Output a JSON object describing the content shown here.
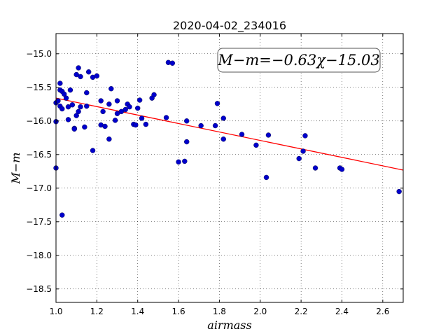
{
  "chart_data": {
    "type": "scatter",
    "title": "2020-04-02_234016",
    "xlabel": "airmass",
    "ylabel": "M−m",
    "xlim": [
      1.0,
      2.7
    ],
    "ylim": [
      -18.7,
      -14.7
    ],
    "y_inverted": true,
    "grid": true,
    "x_ticks": [
      1.0,
      1.2,
      1.4,
      1.6,
      1.8,
      2.0,
      2.2,
      2.4,
      2.6
    ],
    "x_tick_labels": [
      "1.0",
      "1.2",
      "1.4",
      "1.6",
      "1.8",
      "2.0",
      "2.2",
      "2.4",
      "2.6"
    ],
    "y_ticks": [
      -15.0,
      -15.5,
      -16.0,
      -16.5,
      -17.0,
      -17.5,
      -18.0,
      -18.5
    ],
    "y_tick_labels": [
      "−15.0",
      "−15.5",
      "−16.0",
      "−16.5",
      "−17.0",
      "−17.5",
      "−18.0",
      "−18.5"
    ],
    "annotation": "M−m=−0.63χ−15.03",
    "fit": {
      "slope": -0.63,
      "intercept": -15.03,
      "color": "#ff0000"
    },
    "point_color": "#0000cc",
    "points": [
      [
        1.0,
        -15.73
      ],
      [
        1.0,
        -16.01
      ],
      [
        1.0,
        -16.7
      ],
      [
        1.01,
        -15.7
      ],
      [
        1.02,
        -15.78
      ],
      [
        1.02,
        -15.44
      ],
      [
        1.02,
        -15.54
      ],
      [
        1.03,
        -15.56
      ],
      [
        1.03,
        -15.82
      ],
      [
        1.03,
        -17.4
      ],
      [
        1.04,
        -15.6
      ],
      [
        1.05,
        -15.66
      ],
      [
        1.06,
        -15.79
      ],
      [
        1.06,
        -15.98
      ],
      [
        1.07,
        -15.54
      ],
      [
        1.08,
        -15.76
      ],
      [
        1.09,
        -16.11
      ],
      [
        1.09,
        -16.12
      ],
      [
        1.1,
        -15.31
      ],
      [
        1.1,
        -15.92
      ],
      [
        1.11,
        -15.21
      ],
      [
        1.11,
        -15.86
      ],
      [
        1.12,
        -15.34
      ],
      [
        1.12,
        -15.79
      ],
      [
        1.14,
        -16.09
      ],
      [
        1.15,
        -15.58
      ],
      [
        1.15,
        -15.78
      ],
      [
        1.16,
        -15.27
      ],
      [
        1.18,
        -15.35
      ],
      [
        1.18,
        -16.44
      ],
      [
        1.2,
        -15.33
      ],
      [
        1.22,
        -15.7
      ],
      [
        1.22,
        -16.06
      ],
      [
        1.23,
        -15.86
      ],
      [
        1.24,
        -16.08
      ],
      [
        1.26,
        -15.75
      ],
      [
        1.26,
        -16.27
      ],
      [
        1.27,
        -15.52
      ],
      [
        1.29,
        -15.99
      ],
      [
        1.3,
        -15.7
      ],
      [
        1.3,
        -15.89
      ],
      [
        1.32,
        -15.86
      ],
      [
        1.34,
        -15.83
      ],
      [
        1.35,
        -15.75
      ],
      [
        1.36,
        -15.79
      ],
      [
        1.38,
        -16.05
      ],
      [
        1.39,
        -16.06
      ],
      [
        1.4,
        -15.81
      ],
      [
        1.41,
        -15.69
      ],
      [
        1.42,
        -15.96
      ],
      [
        1.44,
        -16.05
      ],
      [
        1.47,
        -15.66
      ],
      [
        1.48,
        -15.61
      ],
      [
        1.54,
        -15.95
      ],
      [
        1.55,
        -15.13
      ],
      [
        1.57,
        -15.14
      ],
      [
        1.6,
        -16.61
      ],
      [
        1.63,
        -16.6
      ],
      [
        1.64,
        -16.0
      ],
      [
        1.64,
        -16.31
      ],
      [
        1.71,
        -16.07
      ],
      [
        1.78,
        -16.07
      ],
      [
        1.79,
        -15.74
      ],
      [
        1.82,
        -16.27
      ],
      [
        1.82,
        -15.96
      ],
      [
        1.91,
        -16.2
      ],
      [
        1.98,
        -16.36
      ],
      [
        2.03,
        -16.84
      ],
      [
        2.04,
        -16.21
      ],
      [
        2.19,
        -16.56
      ],
      [
        2.21,
        -16.45
      ],
      [
        2.22,
        -16.22
      ],
      [
        2.27,
        -16.7
      ],
      [
        2.39,
        -16.7
      ],
      [
        2.4,
        -16.72
      ],
      [
        2.68,
        -17.05
      ]
    ]
  }
}
